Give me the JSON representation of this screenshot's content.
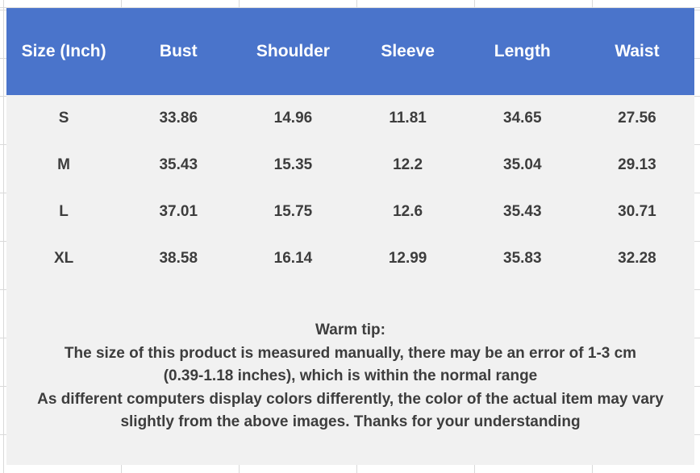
{
  "colors": {
    "header_bg": "#4a74cb",
    "header_text": "#ffffff",
    "body_bg": "#f1f1f1",
    "text": "#3d3d3d",
    "gridline": "#d9d9d9"
  },
  "size_chart": {
    "columns": [
      "Size (Inch)",
      "Bust",
      "Shoulder",
      "Sleeve",
      "Length",
      "Waist"
    ],
    "rows": [
      {
        "size": "S",
        "bust": "33.86",
        "shoulder": "14.96",
        "sleeve": "11.81",
        "length": "34.65",
        "waist": "27.56"
      },
      {
        "size": "M",
        "bust": "35.43",
        "shoulder": "15.35",
        "sleeve": "12.2",
        "length": "35.04",
        "waist": "29.13"
      },
      {
        "size": "L",
        "bust": "37.01",
        "shoulder": "15.75",
        "sleeve": "12.6",
        "length": "35.43",
        "waist": "30.71"
      },
      {
        "size": "XL",
        "bust": "38.58",
        "shoulder": "16.14",
        "sleeve": "12.99",
        "length": "35.83",
        "waist": "32.28"
      }
    ]
  },
  "warm_tip": {
    "title": "Warm tip:",
    "lines": [
      "The size of this product is measured manually, there may be an error of 1-3 cm",
      "(0.39-1.18 inches), which is within the normal range",
      "As different computers display colors differently, the color of the actual item may vary",
      "slightly from the above images. Thanks for your understanding"
    ]
  }
}
